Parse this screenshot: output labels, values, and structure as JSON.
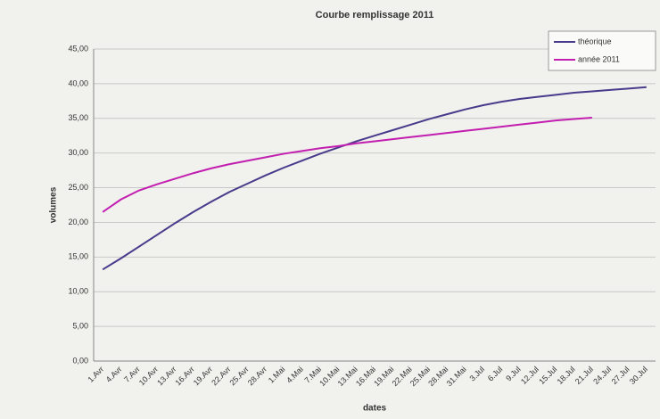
{
  "chart_data": {
    "type": "line",
    "title": "Courbe remplissage 2011",
    "xlabel": "dates",
    "ylabel": "volumes",
    "categories": [
      "1.Avr",
      "4.Avr",
      "7.Avr",
      "10.Avr",
      "13.Avr",
      "16.Avr",
      "19.Avr",
      "22.Avr",
      "25.Avr",
      "28.Avr",
      "1.Mai",
      "4.Mai",
      "7.Mai",
      "10.Mai",
      "13.Mai",
      "16.Mai",
      "19.Mai",
      "22.Mai",
      "25.Mai",
      "28.Mai",
      "31.Mai",
      "3.Jul",
      "6.Jul",
      "9.Jul",
      "12.Jul",
      "15.Jul",
      "18.Jul",
      "21.Jul",
      "24.Jul",
      "27.Jul",
      "30.Jul"
    ],
    "series": [
      {
        "name": "théorique",
        "color": "#4a3a8c",
        "values": [
          13.2,
          14.8,
          16.5,
          18.2,
          19.9,
          21.5,
          23.0,
          24.4,
          25.6,
          26.8,
          27.9,
          28.9,
          29.9,
          30.8,
          31.7,
          32.5,
          33.3,
          34.1,
          34.9,
          35.6,
          36.3,
          36.9,
          37.4,
          37.8,
          38.1,
          38.4,
          38.7,
          38.9,
          39.1,
          39.3,
          39.5
        ]
      },
      {
        "name": "année 2011",
        "color": "#c21fb0",
        "values": [
          21.5,
          23.3,
          24.6,
          25.5,
          26.3,
          27.1,
          27.8,
          28.4,
          28.9,
          29.4,
          29.9,
          30.3,
          30.7,
          31.0,
          31.4,
          31.7,
          32.0,
          32.3,
          32.6,
          32.9,
          33.2,
          33.5,
          33.8,
          34.1,
          34.4,
          34.7,
          34.9,
          35.1,
          null,
          null,
          null
        ]
      }
    ],
    "ylim": [
      0,
      45
    ],
    "yticks": [
      {
        "value": 0,
        "label": "0,00"
      },
      {
        "value": 5,
        "label": "5,00"
      },
      {
        "value": 10,
        "label": "10,00"
      },
      {
        "value": 15,
        "label": "15,00"
      },
      {
        "value": 20,
        "label": "20,00"
      },
      {
        "value": 25,
        "label": "25,00"
      },
      {
        "value": 30,
        "label": "30,00"
      },
      {
        "value": 35,
        "label": "35,00"
      },
      {
        "value": 40,
        "label": "40,00"
      },
      {
        "value": 45,
        "label": "45,00"
      }
    ],
    "grid": true,
    "legend": "top-right"
  }
}
